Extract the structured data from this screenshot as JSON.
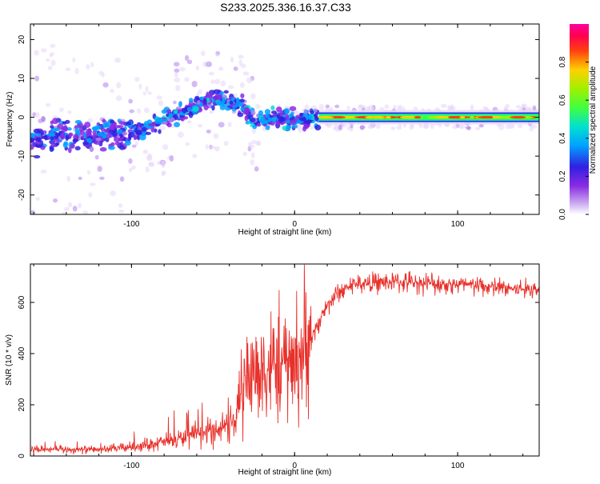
{
  "title": "S233.2025.336.16.37.C33",
  "chart_data": [
    {
      "type": "heatmap",
      "xlabel": "Height of straight line (km)",
      "ylabel": "Frequency (Hz)",
      "xlim": [
        -162,
        150
      ],
      "ylim": [
        -25,
        24
      ],
      "xticks": [
        -100,
        0,
        100
      ],
      "yticks": [
        -20,
        -10,
        0,
        10,
        20
      ],
      "colorbar": {
        "label": "Normalized spectral amplitude",
        "ticks": [
          0.0,
          0.2,
          0.4,
          0.6,
          0.8
        ],
        "range": [
          0,
          1
        ]
      },
      "ridge": [
        {
          "x": -160,
          "y": -5.5
        },
        {
          "x": -140,
          "y": -5.0
        },
        {
          "x": -120,
          "y": -5.0
        },
        {
          "x": -100,
          "y": -4.0
        },
        {
          "x": -90,
          "y": -2.5
        },
        {
          "x": -80,
          "y": -1.0
        },
        {
          "x": -70,
          "y": 1.0
        },
        {
          "x": -60,
          "y": 3.0
        },
        {
          "x": -50,
          "y": 5.0
        },
        {
          "x": -40,
          "y": 4.0
        },
        {
          "x": -32,
          "y": 3.0
        },
        {
          "x": -25,
          "y": -1.0
        },
        {
          "x": -15,
          "y": 0.0
        },
        {
          "x": 0,
          "y": -0.5
        },
        {
          "x": 15,
          "y": 0.0
        },
        {
          "x": 150,
          "y": 0.0
        }
      ]
    },
    {
      "type": "line",
      "xlabel": "Height of straight line (km)",
      "ylabel": "SNR (10 * v/v)",
      "xlim": [
        -162,
        150
      ],
      "ylim": [
        0,
        750
      ],
      "xticks": [
        -100,
        0,
        100
      ],
      "yticks": [
        0,
        200,
        400,
        600
      ],
      "color": "#e8302a",
      "envelope": [
        {
          "x": -162,
          "y": 25
        },
        {
          "x": -120,
          "y": 25
        },
        {
          "x": -100,
          "y": 35
        },
        {
          "x": -80,
          "y": 55
        },
        {
          "x": -60,
          "y": 80
        },
        {
          "x": -45,
          "y": 110
        },
        {
          "x": -35,
          "y": 150
        },
        {
          "x": -32,
          "y": 280
        },
        {
          "x": -28,
          "y": 320
        },
        {
          "x": -20,
          "y": 340
        },
        {
          "x": -10,
          "y": 360
        },
        {
          "x": 0,
          "y": 370
        },
        {
          "x": 10,
          "y": 450
        },
        {
          "x": 18,
          "y": 570
        },
        {
          "x": 25,
          "y": 630
        },
        {
          "x": 35,
          "y": 670
        },
        {
          "x": 60,
          "y": 680
        },
        {
          "x": 100,
          "y": 670
        },
        {
          "x": 130,
          "y": 655
        },
        {
          "x": 150,
          "y": 650
        }
      ]
    }
  ]
}
